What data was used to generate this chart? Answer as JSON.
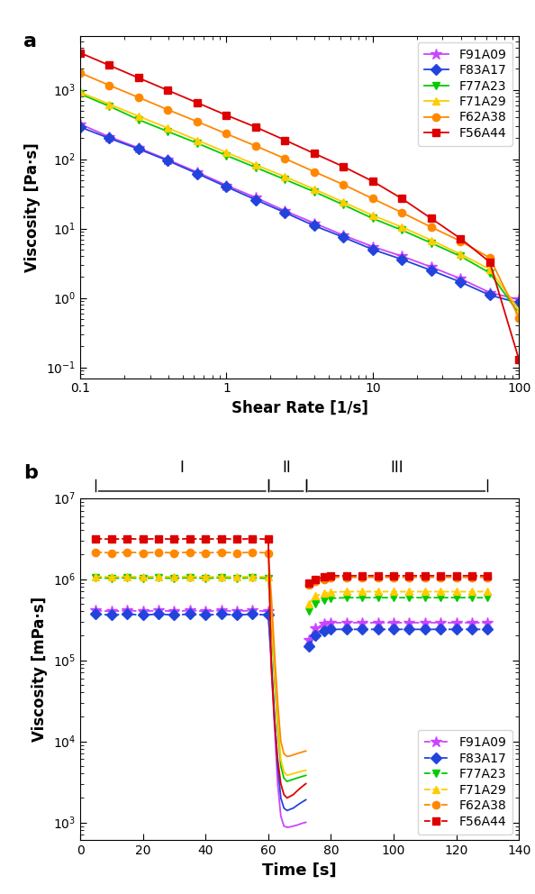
{
  "series_labels": [
    "F91A09",
    "F83A17",
    "F77A23",
    "F71A29",
    "F62A38",
    "F56A44"
  ],
  "colors": [
    "#CC44FF",
    "#2244DD",
    "#00CC00",
    "#FFCC00",
    "#FF8800",
    "#DD0000"
  ],
  "markers_a": [
    "*",
    "D",
    "v",
    "^",
    "o",
    "s"
  ],
  "markers_b": [
    "*",
    "D",
    "v",
    "^",
    "o",
    "s"
  ],
  "panel_a": {
    "xlabel": "Shear Rate [1/s]",
    "ylabel": "Viscosity [Pa·s]",
    "xlim": [
      0.1,
      100
    ],
    "ylim": [
      0.07,
      6000
    ],
    "shear_rates": [
      0.1,
      0.158,
      0.251,
      0.398,
      0.631,
      1.0,
      1.585,
      2.512,
      3.981,
      6.31,
      10.0,
      15.85,
      25.12,
      39.81,
      63.1,
      100.0
    ],
    "viscosities": {
      "F91A09": [
        320,
        210,
        145,
        98,
        65,
        42,
        28,
        18,
        12,
        8.0,
        5.5,
        4.0,
        2.8,
        1.9,
        1.2,
        0.95
      ],
      "F83A17": [
        290,
        200,
        140,
        95,
        62,
        40,
        26,
        17,
        11,
        7.5,
        5.0,
        3.6,
        2.5,
        1.7,
        1.1,
        0.85
      ],
      "F77A23": [
        870,
        580,
        370,
        250,
        170,
        113,
        76,
        51,
        34,
        22,
        14,
        9.5,
        6.2,
        4.0,
        2.3,
        0.6
      ],
      "F71A29": [
        920,
        620,
        415,
        280,
        188,
        125,
        83,
        56,
        37,
        24,
        15.5,
        10.5,
        6.8,
        4.3,
        2.6,
        0.68
      ],
      "F62A38": [
        1750,
        1160,
        775,
        515,
        348,
        232,
        155,
        102,
        66,
        43,
        27,
        17,
        10.5,
        6.6,
        3.8,
        0.52
      ],
      "F56A44": [
        3400,
        2250,
        1480,
        980,
        650,
        430,
        290,
        188,
        121,
        78,
        48,
        27,
        14,
        7.2,
        3.3,
        0.13
      ]
    }
  },
  "panel_b": {
    "xlabel": "Time [s]",
    "ylabel": "Viscosity [mPa·s]",
    "xlim": [
      0,
      140
    ],
    "ylim_low": 600,
    "ylim_high": 10000000.0,
    "region_I_start": 5,
    "region_I_end": 60,
    "region_II_start": 60,
    "region_II_end": 72,
    "region_III_start": 72,
    "region_III_end": 130,
    "phase1_time": [
      5,
      10,
      15,
      20,
      25,
      30,
      35,
      40,
      45,
      50,
      55,
      60
    ],
    "phase2_time_points": [
      60.0,
      61.0,
      62.0,
      63.0,
      64.0,
      65.0,
      66.0,
      67.0,
      68.0,
      69.0,
      70.0,
      71.0,
      72.0
    ],
    "phase3_time": [
      73,
      75,
      78,
      80,
      85,
      90,
      95,
      100,
      105,
      110,
      115,
      120,
      125,
      130
    ],
    "viscosities_phase1": {
      "F91A09": [
        410000.0,
        400000.0,
        410000.0,
        400000.0,
        410000.0,
        400000.0,
        410000.0,
        400000.0,
        410000.0,
        400000.0,
        410000.0,
        400000.0
      ],
      "F83A17": [
        370000.0,
        360000.0,
        370000.0,
        360000.0,
        370000.0,
        360000.0,
        370000.0,
        360000.0,
        370000.0,
        360000.0,
        370000.0,
        360000.0
      ],
      "F77A23": [
        1040000.0,
        1020000.0,
        1040000.0,
        1020000.0,
        1040000.0,
        1020000.0,
        1040000.0,
        1020000.0,
        1040000.0,
        1020000.0,
        1040000.0,
        1020000.0
      ],
      "F71A29": [
        1080000.0,
        1060000.0,
        1080000.0,
        1060000.0,
        1080000.0,
        1060000.0,
        1080000.0,
        1060000.0,
        1080000.0,
        1060000.0,
        1080000.0,
        1060000.0
      ],
      "F62A38": [
        2150000.0,
        2100000.0,
        2150000.0,
        2100000.0,
        2150000.0,
        2100000.0,
        2150000.0,
        2100000.0,
        2150000.0,
        2100000.0,
        2150000.0,
        2100000.0
      ],
      "F56A44": [
        3150000.0,
        3100000.0,
        3150000.0,
        3100000.0,
        3150000.0,
        3100000.0,
        3150000.0,
        3100000.0,
        3150000.0,
        3100000.0,
        3150000.0,
        3100000.0
      ]
    },
    "viscosities_phase2": {
      "F91A09": [
        400000.0,
        80000.0,
        15000.0,
        3000.0,
        1200.0,
        900,
        870,
        880,
        900,
        920,
        950,
        980,
        1000
      ],
      "F83A17": [
        360000.0,
        100000.0,
        20000.0,
        5000.0,
        2000.0,
        1500.0,
        1400.0,
        1450.0,
        1500.0,
        1600.0,
        1700.0,
        1800.0,
        1900.0
      ],
      "F77A23": [
        1020000.0,
        300000.0,
        60000.0,
        15000.0,
        5000.0,
        3500.0,
        3200.0,
        3300.0,
        3400.0,
        3500.0,
        3600.0,
        3700.0,
        3800.0
      ],
      "F71A29": [
        1060000.0,
        350000.0,
        70000.0,
        18000.0,
        6000.0,
        4200.0,
        3800.0,
        3900.0,
        4000.0,
        4100.0,
        4200.0,
        4300.0,
        4400.0
      ],
      "F62A38": [
        2100000.0,
        600000.0,
        120000.0,
        30000.0,
        10000.0,
        7000.0,
        6500.0,
        6600.0,
        6800.0,
        7000.0,
        7200.0,
        7400.0,
        7600.0
      ],
      "F56A44": [
        3100000.0,
        80000.0,
        18000.0,
        6000.0,
        3000.0,
        2200.0,
        2000.0,
        2100.0,
        2200.0,
        2400.0,
        2600.0,
        2800.0,
        3000.0
      ]
    },
    "viscosities_phase3": {
      "F91A09": [
        180000.0,
        250000.0,
        280000.0,
        290000.0,
        290000.0,
        290000.0,
        290000.0,
        290000.0,
        290000.0,
        290000.0,
        290000.0,
        290000.0,
        290000.0,
        290000.0
      ],
      "F83A17": [
        150000.0,
        200000.0,
        230000.0,
        240000.0,
        240000.0,
        240000.0,
        240000.0,
        240000.0,
        240000.0,
        240000.0,
        240000.0,
        240000.0,
        240000.0,
        240000.0
      ],
      "F77A23": [
        400000.0,
        500000.0,
        550000.0,
        580000.0,
        590000.0,
        590000.0,
        590000.0,
        590000.0,
        590000.0,
        590000.0,
        590000.0,
        590000.0,
        590000.0,
        590000.0
      ],
      "F71A29": [
        500000.0,
        620000.0,
        670000.0,
        690000.0,
        700000.0,
        700000.0,
        700000.0,
        700000.0,
        700000.0,
        700000.0,
        700000.0,
        700000.0,
        700000.0,
        700000.0
      ],
      "F62A38": [
        850000.0,
        950000.0,
        1000000.0,
        1050000.0,
        1050000.0,
        1050000.0,
        1050000.0,
        1050000.0,
        1050000.0,
        1050000.0,
        1050000.0,
        1050000.0,
        1050000.0,
        1050000.0
      ],
      "F56A44": [
        900000.0,
        1000000.0,
        1060000.0,
        1100000.0,
        1100000.0,
        1100000.0,
        1100000.0,
        1100000.0,
        1100000.0,
        1100000.0,
        1100000.0,
        1100000.0,
        1100000.0,
        1100000.0
      ]
    }
  }
}
